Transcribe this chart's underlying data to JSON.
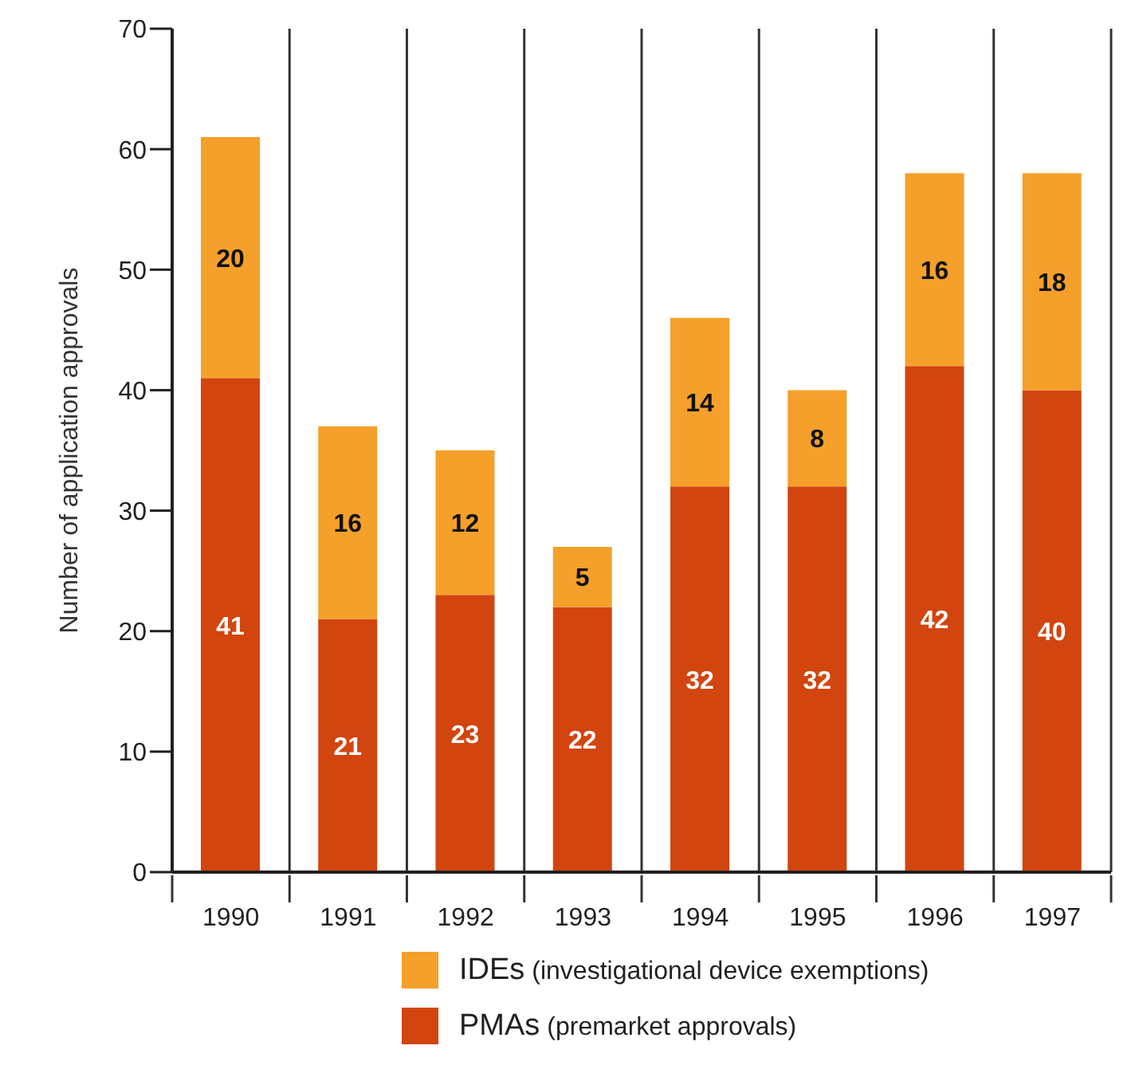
{
  "chart_data": {
    "type": "bar",
    "stacked": true,
    "ylabel": "Number of application approvals",
    "categories": [
      "1990",
      "1991",
      "1992",
      "1993",
      "1994",
      "1995",
      "1996",
      "1997"
    ],
    "series": [
      {
        "name": "PMAs (premarket approvals)",
        "color": "#d2450e",
        "values": [
          41,
          21,
          23,
          22,
          32,
          32,
          42,
          40
        ]
      },
      {
        "name": "IDEs (investigational device exemptions)",
        "color": "#f5a02a",
        "values": [
          20,
          16,
          12,
          5,
          14,
          8,
          16,
          18
        ]
      }
    ],
    "ylim": [
      0,
      70
    ],
    "yticks": [
      0,
      10,
      20,
      30,
      40,
      50,
      60,
      70
    ],
    "grid": "x",
    "legend": "bottom",
    "data_labels": true
  }
}
